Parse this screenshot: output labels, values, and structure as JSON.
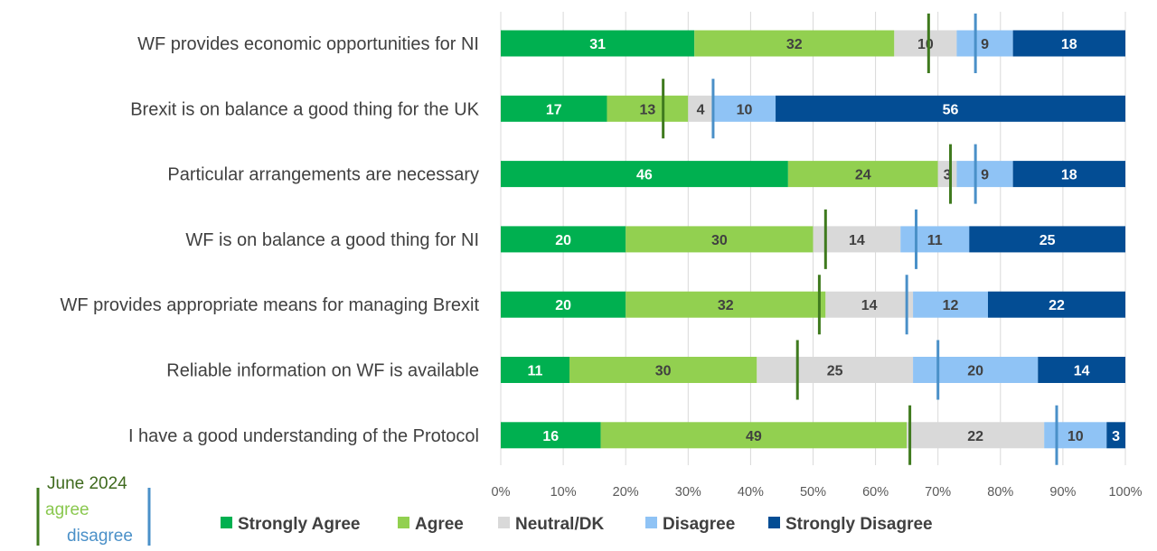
{
  "chart_data": {
    "type": "bar",
    "orientation": "horizontal",
    "stacked": true,
    "percent_stacked": true,
    "categories": [
      "WF provides economic opportunities for NI",
      "Brexit is on balance a good thing for the UK",
      "Particular arrangements are necessary",
      "WF is on balance a good thing for NI",
      "WF provides appropriate means for managing Brexit",
      "Reliable information on WF is available",
      "I have a good understanding of the Protocol"
    ],
    "series": [
      {
        "name": "Strongly Agree",
        "color": "#00b050",
        "label_color": "#ffffff",
        "values": [
          31,
          17,
          46,
          20,
          20,
          11,
          16
        ]
      },
      {
        "name": "Agree",
        "color": "#92d050",
        "label_color": "#404040",
        "values": [
          32,
          13,
          24,
          30,
          32,
          30,
          49
        ]
      },
      {
        "name": "Neutral/DK",
        "color": "#d9d9d9",
        "label_color": "#404040",
        "values": [
          10,
          4,
          3,
          14,
          14,
          25,
          22
        ]
      },
      {
        "name": "Disagree",
        "color": "#8fc3f5",
        "label_color": "#404040",
        "values": [
          9,
          10,
          9,
          11,
          12,
          20,
          10
        ]
      },
      {
        "name": "Strongly Disagree",
        "color": "#034d94",
        "label_color": "#ffffff",
        "values": [
          18,
          56,
          18,
          25,
          22,
          14,
          3
        ]
      }
    ],
    "markers": {
      "title": "June 2024",
      "agree": {
        "label": "agree",
        "color": "#3f7a1e",
        "values": [
          68.5,
          26,
          72,
          52,
          51,
          47.5,
          65.5
        ]
      },
      "disagree": {
        "label": "disagree",
        "color": "#4a90c8",
        "values": [
          76,
          34,
          76,
          66.5,
          65,
          70,
          89
        ]
      }
    },
    "xlim": [
      0,
      100
    ],
    "xticks": [
      "0%",
      "10%",
      "20%",
      "30%",
      "40%",
      "50%",
      "60%",
      "70%",
      "80%",
      "90%",
      "100%"
    ],
    "grid": "vertical",
    "legend": "bottom",
    "title": "",
    "xlabel": "",
    "ylabel": ""
  }
}
